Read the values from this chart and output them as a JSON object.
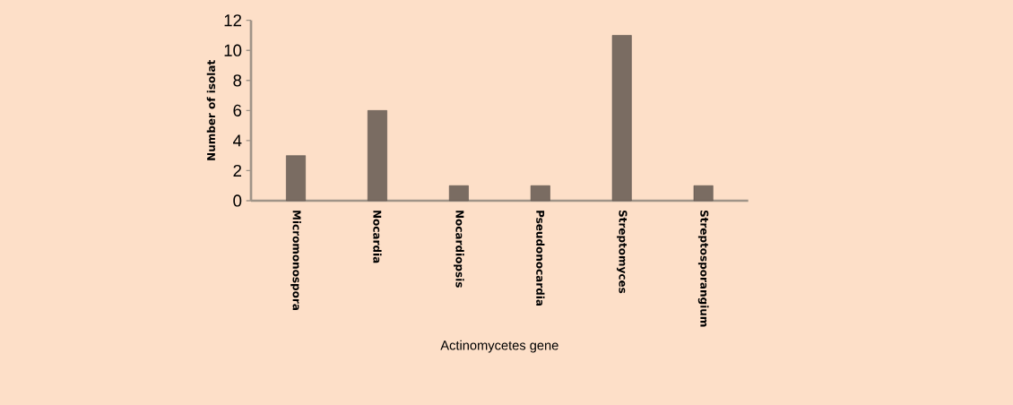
{
  "chart_data": {
    "type": "bar",
    "xlabel": "Actinomycetes gene",
    "ylabel": "Number of isolat",
    "categories": [
      "Micromonospora",
      "Nocardia",
      "Nocardiopsis",
      "Pseudonocardia",
      "Streptomyces",
      "Streptosporangium"
    ],
    "values": [
      3,
      6,
      1,
      1,
      11,
      1
    ],
    "color": "#7a6c62",
    "ylim": [
      0,
      12
    ],
    "yticks": [
      0,
      2,
      4,
      6,
      8,
      10,
      12
    ]
  }
}
